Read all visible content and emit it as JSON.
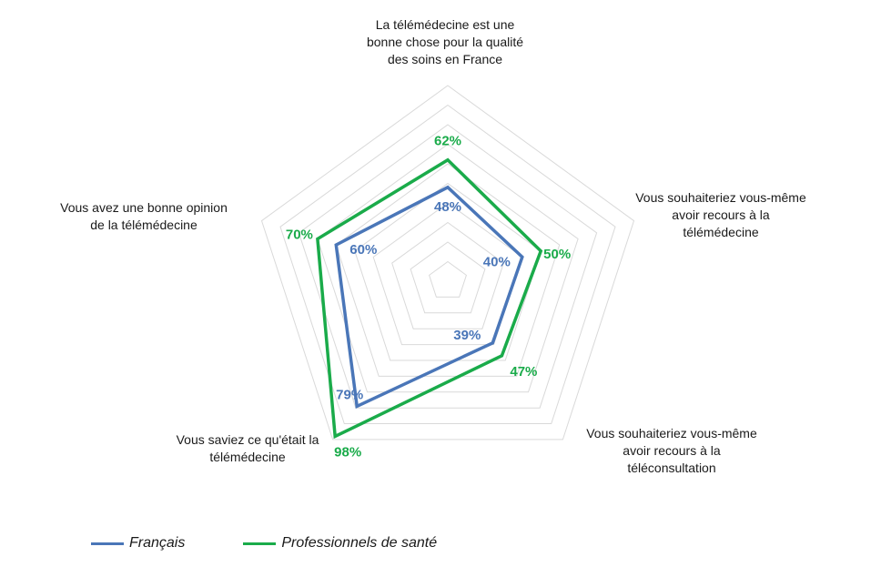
{
  "chart_data": {
    "type": "radar",
    "axes": [
      [
        "La télémédecine est une",
        "bonne chose pour la qualité",
        "des soins en France"
      ],
      [
        "Vous souhaiteriez vous-même",
        "avoir recours à la",
        "télémédecine"
      ],
      [
        "Vous souhaiteriez vous-même",
        "avoir recours à la",
        "téléconsultation"
      ],
      [
        "Vous saviez ce qu'était la",
        "télémédecine"
      ],
      [
        "Vous avez une bonne opinion",
        "de la télémédecine"
      ]
    ],
    "rmax": 100,
    "gridlines": [
      10,
      20,
      30,
      40,
      50,
      60,
      70,
      80,
      90,
      100
    ],
    "series": [
      {
        "name": "Français",
        "color": "#4a76b8",
        "values": [
          48,
          40,
          39,
          79,
          60
        ],
        "labels": [
          "48%",
          "40%",
          "39%",
          "79%",
          "60%"
        ]
      },
      {
        "name": "Professionnels de santé",
        "color": "#1aab4a",
        "values": [
          62,
          50,
          47,
          98,
          70
        ],
        "labels": [
          "62%",
          "50%",
          "47%",
          "98%",
          "70%"
        ]
      }
    ],
    "legend_position": "bottom"
  }
}
